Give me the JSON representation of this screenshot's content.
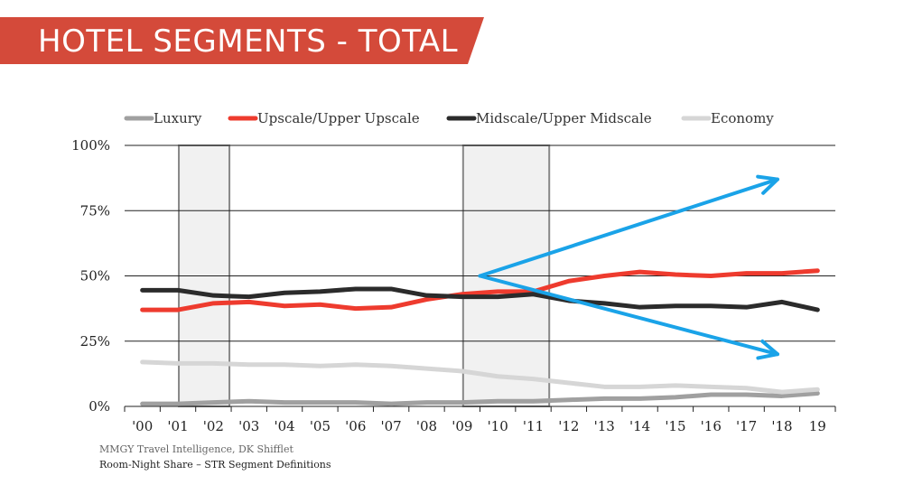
{
  "header": {
    "title": "HOTEL SEGMENTS - TOTAL",
    "banner_color": "#d44a3a"
  },
  "footnotes": {
    "source": "MMGY Travel Intelligence, DK Shifflet",
    "definition": "Room-Night Share – STR Segment Definitions"
  },
  "chart_data": {
    "type": "line",
    "title": "",
    "xlabel": "",
    "ylabel": "",
    "ylim": [
      0,
      100
    ],
    "y_ticks": [
      "0%",
      "25%",
      "50%",
      "75%",
      "100%"
    ],
    "y_tick_values": [
      0,
      25,
      50,
      75,
      100
    ],
    "categories": [
      "'00",
      "'01",
      "'02",
      "'03",
      "'04",
      "'05",
      "'06",
      "'07",
      "'08",
      "'09",
      "'10",
      "'11",
      "'12",
      "'13",
      "'14",
      "'15",
      "'16",
      "'17",
      "'18",
      "19"
    ],
    "legend_position": "top",
    "series": [
      {
        "name": "Luxury",
        "color": "#a0a0a0",
        "values": [
          1,
          1,
          1.5,
          2,
          1.5,
          1.5,
          1.5,
          1,
          1.5,
          1.5,
          2,
          2,
          2.5,
          3,
          3,
          3.5,
          4.5,
          4.5,
          4,
          5
        ]
      },
      {
        "name": "Upscale/Upper Upscale",
        "color": "#ee3b2e",
        "values": [
          37,
          37,
          39.5,
          40,
          38.5,
          39,
          37.5,
          38,
          41,
          43,
          44,
          44,
          48,
          50,
          51.5,
          50.5,
          50,
          51,
          51,
          52
        ]
      },
      {
        "name": "Midscale/Upper Midscale",
        "color": "#2b2b2b",
        "values": [
          44.5,
          44.5,
          42.5,
          42,
          43.5,
          44,
          45,
          45,
          42.5,
          42,
          42,
          43,
          40.5,
          39.5,
          38,
          38.5,
          38.5,
          38,
          40,
          37
        ]
      },
      {
        "name": "Economy",
        "color": "#d6d6d6",
        "values": [
          17,
          16.5,
          16.5,
          16,
          16,
          15.5,
          16,
          15.5,
          14.5,
          13.5,
          11.5,
          10.5,
          9,
          7.5,
          7.5,
          8,
          7.5,
          7,
          5.5,
          6.5
        ]
      }
    ],
    "shaded_ranges": [
      {
        "from": "'01",
        "to": "'02"
      },
      {
        "from": "'09",
        "to": "'11"
      }
    ],
    "annotations": [
      {
        "type": "arrow",
        "from": [
          "'10",
          50
        ],
        "to": [
          "'18",
          87
        ],
        "color": "#1aa3e8"
      },
      {
        "type": "arrow",
        "from": [
          "'10",
          50
        ],
        "to": [
          "'18",
          20
        ],
        "color": "#1aa3e8"
      }
    ]
  }
}
